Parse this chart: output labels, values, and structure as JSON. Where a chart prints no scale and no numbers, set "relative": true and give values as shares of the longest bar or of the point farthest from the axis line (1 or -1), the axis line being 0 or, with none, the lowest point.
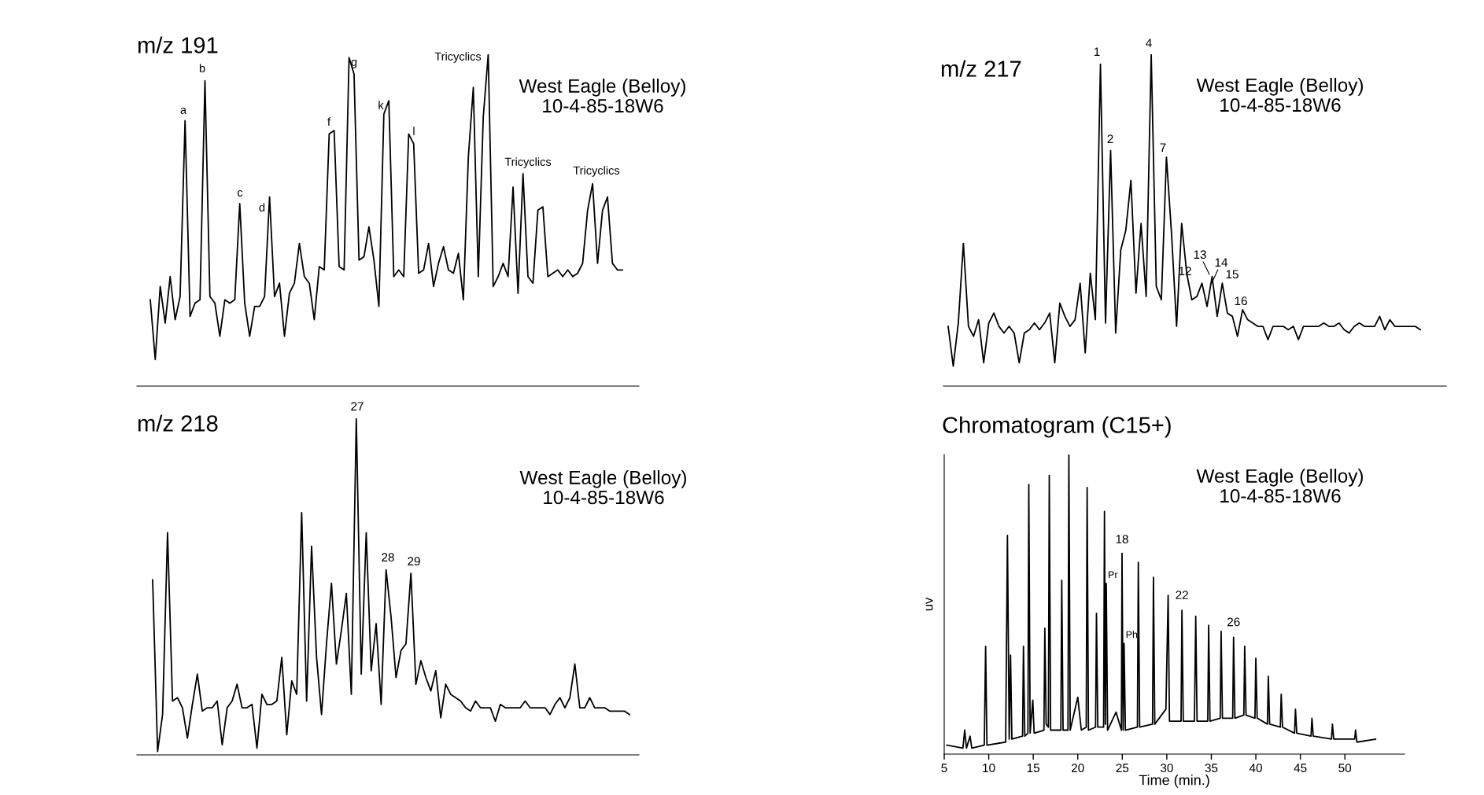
{
  "chart_data": [
    {
      "type": "line",
      "title": "m/z 191",
      "relative": true,
      "categories": [
        null,
        null,
        null,
        null,
        null,
        null,
        null,
        null,
        null,
        null,
        null,
        null,
        null,
        null,
        null,
        null,
        null,
        null,
        null,
        null,
        null,
        null,
        null,
        null,
        null,
        null,
        null,
        null,
        null,
        null,
        null,
        null,
        null,
        null,
        null,
        null,
        null,
        null,
        null,
        null,
        null,
        null,
        null,
        null,
        null,
        null,
        null,
        null,
        null,
        null,
        null,
        null,
        null,
        null,
        null,
        null,
        null,
        null,
        null,
        null,
        null,
        null,
        null,
        null,
        null,
        null,
        null,
        null,
        null,
        null,
        null,
        null,
        null,
        null,
        null,
        null,
        null,
        null,
        null,
        null,
        null,
        null,
        null,
        null,
        null,
        null,
        null,
        null,
        null,
        null,
        null,
        null,
        null,
        null,
        null,
        null
      ],
      "series": [
        {
          "color": "#000000",
          "values": [
            0.26,
            0.08,
            0.3,
            0.19,
            0.33,
            0.2,
            0.27,
            0.8,
            0.21,
            0.25,
            0.26,
            0.92,
            0.27,
            0.25,
            0.15,
            0.26,
            0.25,
            0.26,
            0.55,
            0.25,
            0.15,
            0.24,
            0.24,
            0.27,
            0.57,
            0.27,
            0.31,
            0.15,
            0.28,
            0.31,
            0.43,
            0.33,
            0.31,
            0.2,
            0.36,
            0.35,
            0.76,
            0.77,
            0.36,
            0.35,
            0.99,
            0.94,
            0.38,
            0.39,
            0.48,
            0.38,
            0.24,
            0.82,
            0.86,
            0.33,
            0.35,
            0.33,
            0.76,
            0.73,
            0.34,
            0.35,
            0.43,
            0.3,
            0.37,
            0.42,
            0.35,
            0.34,
            0.4,
            0.26,
            0.69,
            0.9,
            0.33,
            0.81,
            1.0,
            0.3,
            0.33,
            0.37,
            0.33,
            0.6,
            0.28,
            0.64,
            0.33,
            0.31,
            0.53,
            0.54,
            0.33,
            0.34,
            0.35,
            0.33,
            0.35,
            0.33,
            0.34,
            0.37,
            0.53,
            0.61,
            0.37,
            0.53,
            0.57,
            0.37,
            0.35,
            0.35
          ]
        }
      ],
      "annotations": [
        "a",
        "b",
        "c",
        "d",
        "f",
        "g",
        "k",
        "l",
        "Tricyclics",
        "Tricyclics",
        "Tricyclics",
        "West Eagle (Belloy)\n10-4-85-18W6"
      ]
    },
    {
      "type": "line",
      "title": "m/z 217",
      "relative": true,
      "categories": [
        null,
        null,
        null,
        null,
        null,
        null,
        null,
        null,
        null,
        null,
        null,
        null,
        null,
        null,
        null,
        null,
        null,
        null,
        null,
        null,
        null,
        null,
        null,
        null,
        null,
        null,
        null,
        null,
        null,
        null,
        null,
        null,
        null,
        null,
        null,
        null,
        null,
        null,
        null,
        null,
        null,
        null,
        null,
        null,
        null,
        null,
        null,
        null,
        null,
        null,
        null,
        null,
        null,
        null,
        null,
        null,
        null,
        null,
        null,
        null,
        null,
        null,
        null,
        null,
        null,
        null,
        null,
        null,
        null,
        null,
        null,
        null,
        null,
        null,
        null,
        null,
        null,
        null,
        null,
        null,
        null,
        null,
        null,
        null,
        null,
        null,
        null,
        null,
        null,
        null,
        null,
        null,
        null,
        null
      ],
      "series": [
        {
          "color": "#000000",
          "values": [
            0.18,
            0.06,
            0.19,
            0.43,
            0.18,
            0.15,
            0.2,
            0.07,
            0.19,
            0.22,
            0.18,
            0.16,
            0.18,
            0.16,
            0.07,
            0.16,
            0.17,
            0.19,
            0.17,
            0.19,
            0.22,
            0.07,
            0.25,
            0.21,
            0.18,
            0.2,
            0.31,
            0.1,
            0.34,
            0.2,
            0.97,
            0.19,
            0.71,
            0.16,
            0.41,
            0.47,
            0.62,
            0.28,
            0.49,
            0.27,
            1.0,
            0.3,
            0.26,
            0.69,
            0.46,
            0.18,
            0.49,
            0.34,
            0.26,
            0.27,
            0.31,
            0.24,
            0.33,
            0.21,
            0.31,
            0.22,
            0.21,
            0.15,
            0.23,
            0.2,
            0.19,
            0.18,
            0.18,
            0.14,
            0.18,
            0.18,
            0.18,
            0.17,
            0.18,
            0.14,
            0.18,
            0.18,
            0.18,
            0.18,
            0.19,
            0.18,
            0.18,
            0.19,
            0.17,
            0.16,
            0.18,
            0.19,
            0.18,
            0.18,
            0.18,
            0.21,
            0.17,
            0.2,
            0.18,
            0.18,
            0.18,
            0.18,
            0.18,
            0.17
          ]
        }
      ],
      "annotations": [
        "1",
        "2",
        "4",
        "7",
        "12",
        "13",
        "14",
        "15",
        "16",
        "West Eagle (Belloy)\n10-4-85-18W6"
      ]
    },
    {
      "type": "line",
      "title": "m/z 218",
      "relative": true,
      "categories": [
        null,
        null,
        null,
        null,
        null,
        null,
        null,
        null,
        null,
        null,
        null,
        null,
        null,
        null,
        null,
        null,
        null,
        null,
        null,
        null,
        null,
        null,
        null,
        null,
        null,
        null,
        null,
        null,
        null,
        null,
        null,
        null,
        null,
        null,
        null,
        null,
        null,
        null,
        null,
        null,
        null,
        null,
        null,
        null,
        null,
        null,
        null,
        null,
        null,
        null,
        null,
        null,
        null,
        null,
        null,
        null,
        null,
        null,
        null,
        null,
        null,
        null,
        null,
        null,
        null,
        null,
        null,
        null,
        null,
        null,
        null,
        null,
        null,
        null,
        null,
        null,
        null,
        null,
        null,
        null,
        null,
        null,
        null,
        null,
        null,
        null,
        null,
        null,
        null,
        null,
        null,
        null,
        null,
        null,
        null,
        null,
        null
      ],
      "series": [
        {
          "color": "#000000",
          "values": [
            0.52,
            0.01,
            0.12,
            0.66,
            0.16,
            0.17,
            0.14,
            0.05,
            0.15,
            0.24,
            0.13,
            0.14,
            0.14,
            0.16,
            0.03,
            0.14,
            0.16,
            0.21,
            0.14,
            0.14,
            0.15,
            0.02,
            0.18,
            0.15,
            0.15,
            0.16,
            0.29,
            0.06,
            0.22,
            0.18,
            0.72,
            0.16,
            0.62,
            0.29,
            0.12,
            0.33,
            0.51,
            0.27,
            0.37,
            0.48,
            0.18,
            1.0,
            0.24,
            0.66,
            0.25,
            0.39,
            0.15,
            0.55,
            0.41,
            0.23,
            0.31,
            0.33,
            0.54,
            0.21,
            0.28,
            0.23,
            0.19,
            0.25,
            0.11,
            0.21,
            0.18,
            0.17,
            0.16,
            0.14,
            0.13,
            0.16,
            0.14,
            0.14,
            0.14,
            0.1,
            0.15,
            0.14,
            0.14,
            0.14,
            0.14,
            0.16,
            0.14,
            0.14,
            0.14,
            0.14,
            0.12,
            0.15,
            0.17,
            0.14,
            0.17,
            0.27,
            0.14,
            0.14,
            0.17,
            0.14,
            0.14,
            0.14,
            0.13,
            0.13,
            0.13,
            0.13,
            0.12
          ]
        }
      ],
      "annotations": [
        "27",
        "28",
        "29",
        "West Eagle (Belloy)\n10-4-85-18W6"
      ]
    },
    {
      "type": "line",
      "title": "Chromatogram (C15+)",
      "relative": true,
      "xlabel": "Time (min.)",
      "ylabel": "uv",
      "xlim": [
        5,
        56.7
      ],
      "xticks": [
        5,
        10,
        15,
        20,
        25,
        30,
        35,
        40,
        45,
        50
      ],
      "series": [
        {
          "color": "#000000",
          "x": [
            5.3,
            7.1,
            7.3,
            7.5,
            7.9,
            8.1,
            9.5,
            9.65,
            9.8,
            11.9,
            12.1,
            12.3,
            12.45,
            12.6,
            13.8,
            13.9,
            14.05,
            14.4,
            14.5,
            14.65,
            14.95,
            15.1,
            16.2,
            16.3,
            16.45,
            16.7,
            16.8,
            16.95,
            18.1,
            18.2,
            18.35,
            18.9,
            19.0,
            19.15,
            20.0,
            20.4,
            20.95,
            21.05,
            21.2,
            22.0,
            22.1,
            22.25,
            22.9,
            23.0,
            23.1,
            23.2,
            23.35,
            24.3,
            24.9,
            24.97,
            25.1,
            25.2,
            25.35,
            26.7,
            26.8,
            26.95,
            28.4,
            28.5,
            28.65,
            29.9,
            30.15,
            30.3,
            31.6,
            31.7,
            31.85,
            33.1,
            33.25,
            33.4,
            34.6,
            34.7,
            34.85,
            36.0,
            36.1,
            36.25,
            37.4,
            37.5,
            37.65,
            38.65,
            38.75,
            38.9,
            39.9,
            40.0,
            40.15,
            41.3,
            41.4,
            41.55,
            42.75,
            42.85,
            43.0,
            44.35,
            44.45,
            44.6,
            46.2,
            46.3,
            46.45,
            48.5,
            48.6,
            48.75,
            51.1,
            51.2,
            51.35,
            53.45
          ],
          "values": [
            0.03,
            0.02,
            0.08,
            0.02,
            0.06,
            0.02,
            0.03,
            0.36,
            0.03,
            0.04,
            0.73,
            0.05,
            0.33,
            0.05,
            0.06,
            0.36,
            0.06,
            0.07,
            0.9,
            0.07,
            0.18,
            0.07,
            0.08,
            0.42,
            0.1,
            0.09,
            0.93,
            0.08,
            0.08,
            0.58,
            0.08,
            0.08,
            1.0,
            0.08,
            0.19,
            0.08,
            0.09,
            0.89,
            0.08,
            0.09,
            0.47,
            0.09,
            0.09,
            0.81,
            0.1,
            0.57,
            0.08,
            0.14,
            0.08,
            0.67,
            0.08,
            0.37,
            0.08,
            0.09,
            0.64,
            0.09,
            0.1,
            0.59,
            0.1,
            0.15,
            0.53,
            0.11,
            0.11,
            0.48,
            0.11,
            0.11,
            0.46,
            0.11,
            0.11,
            0.43,
            0.11,
            0.12,
            0.41,
            0.12,
            0.12,
            0.39,
            0.12,
            0.13,
            0.36,
            0.13,
            0.12,
            0.32,
            0.12,
            0.1,
            0.26,
            0.1,
            0.09,
            0.2,
            0.09,
            0.07,
            0.15,
            0.07,
            0.06,
            0.12,
            0.06,
            0.05,
            0.1,
            0.05,
            0.05,
            0.08,
            0.04,
            0.05
          ]
        }
      ],
      "annotations": [
        {
          "text": "18",
          "x": 24.97,
          "y": 0.67
        },
        {
          "text": "Pr",
          "x": 23.2,
          "y": 0.57
        },
        {
          "text": "Ph",
          "x": 25.2,
          "y": 0.37
        },
        {
          "text": "22",
          "x": 31.7,
          "y": 0.48
        },
        {
          "text": "26",
          "x": 37.5,
          "y": 0.39
        },
        "West Eagle (Belloy)\n10-4-85-18W6"
      ]
    }
  ]
}
